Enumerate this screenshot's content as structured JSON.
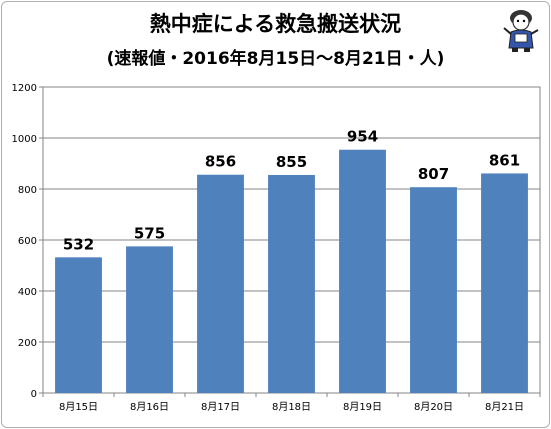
{
  "title": "熱中症による救急搬送状況",
  "subtitle": "(速報値・2016年8月15日〜8月21日・人)",
  "mascot": {
    "icon": "mascot-character-icon"
  },
  "chart_data": {
    "type": "bar",
    "categories": [
      "8月15日",
      "8月16日",
      "8月17日",
      "8月18日",
      "8月19日",
      "8月20日",
      "8月21日"
    ],
    "values": [
      532,
      575,
      856,
      855,
      954,
      807,
      861
    ],
    "data_labels": [
      "532",
      "575",
      "856",
      "855",
      "954",
      "807",
      "861"
    ],
    "title": "熱中症による救急搬送状況",
    "subtitle": "(速報値・2016年8月15日〜8月21日・人)",
    "xlabel": "",
    "ylabel": "",
    "ylim": [
      0,
      1200
    ],
    "yticks": [
      "0",
      "200",
      "400",
      "600",
      "800",
      "1000",
      "1200"
    ],
    "grid": true,
    "legend": "none",
    "bar_color": "#4f81bd"
  }
}
